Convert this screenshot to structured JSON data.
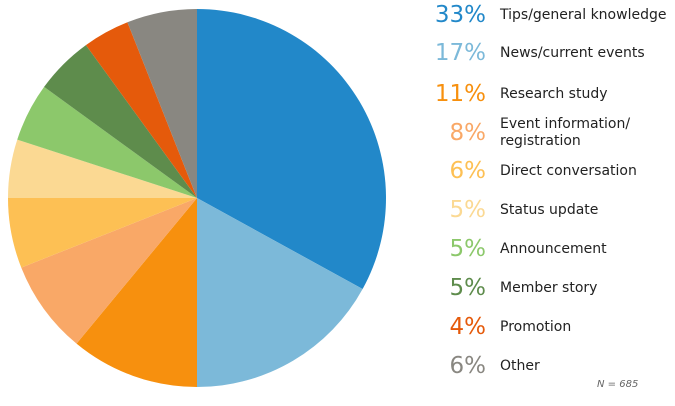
{
  "chart_data": {
    "type": "pie",
    "slices": [
      {
        "label": "Tips/general knowledge",
        "value": 33,
        "display": "33%",
        "color": "#2288C9"
      },
      {
        "label": "News/current events",
        "value": 17,
        "display": "17%",
        "color": "#7CB9D9"
      },
      {
        "label": "Research study",
        "value": 11,
        "display": "11%",
        "color": "#F7900E"
      },
      {
        "label": "Event information/\nregistration",
        "value": 8,
        "display": "8%",
        "color": "#F9A867"
      },
      {
        "label": "Direct conversation",
        "value": 6,
        "display": "6%",
        "color": "#FDC054"
      },
      {
        "label": "Status update",
        "value": 5,
        "display": "5%",
        "color": "#FBD993"
      },
      {
        "label": "Announcement",
        "value": 5,
        "display": "5%",
        "color": "#8CC86B"
      },
      {
        "label": "Member story",
        "value": 5,
        "display": "5%",
        "color": "#5E8C4C"
      },
      {
        "label": "Promotion",
        "value": 4,
        "display": "4%",
        "color": "#E55A0B"
      },
      {
        "label": "Other",
        "value": 6,
        "display": "6%",
        "color": "#898781"
      }
    ],
    "start_angle": "12 o'clock",
    "direction": "clockwise",
    "legend_position": "right",
    "annotation": "N = 685"
  }
}
